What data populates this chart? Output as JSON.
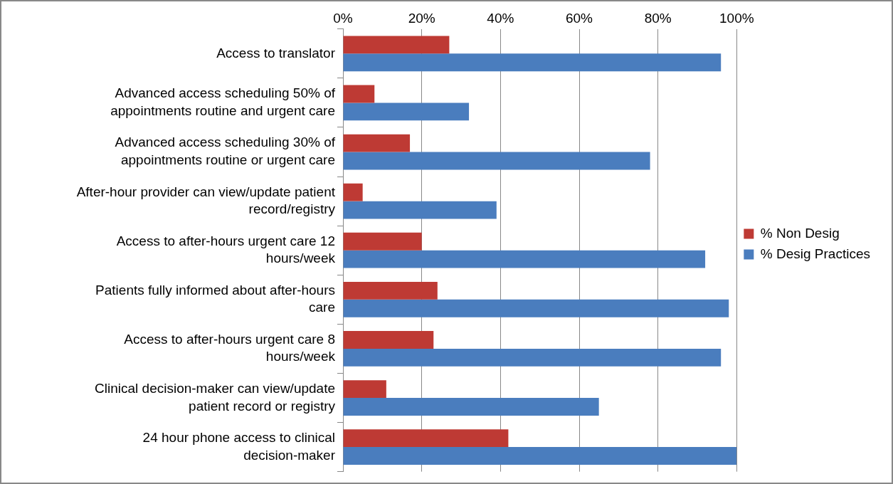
{
  "chart_data": {
    "type": "bar",
    "orientation": "horizontal",
    "categories": [
      "Access to translator",
      "Advanced access scheduling 50% of appointments routine and urgent care",
      "Advanced access scheduling 30% of appointments routine or urgent care",
      "After-hour provider can view/update patient record/registry",
      "Access to after-hours urgent care 12 hours/week",
      "Patients fully informed about after-hours care",
      "Access to after-hours urgent care 8 hours/week",
      "Clinical decision-maker can view/update patient record or registry",
      "24 hour phone access to clinical decision-maker"
    ],
    "series": [
      {
        "name": "% Non Desig",
        "color": "#be3a34",
        "values": [
          27,
          8,
          17,
          5,
          20,
          24,
          23,
          11,
          42
        ]
      },
      {
        "name": "% Desig Practices",
        "color": "#4a7dbe",
        "values": [
          96,
          32,
          78,
          39,
          92,
          98,
          96,
          65,
          100
        ]
      }
    ],
    "xlim": [
      0,
      100
    ],
    "xticks": [
      {
        "value": 0,
        "label": "0%"
      },
      {
        "value": 20,
        "label": "20%"
      },
      {
        "value": 40,
        "label": "40%"
      },
      {
        "value": 60,
        "label": "60%"
      },
      {
        "value": 80,
        "label": "80%"
      },
      {
        "value": 100,
        "label": "100%"
      }
    ],
    "grid": "x",
    "legend": "right"
  }
}
